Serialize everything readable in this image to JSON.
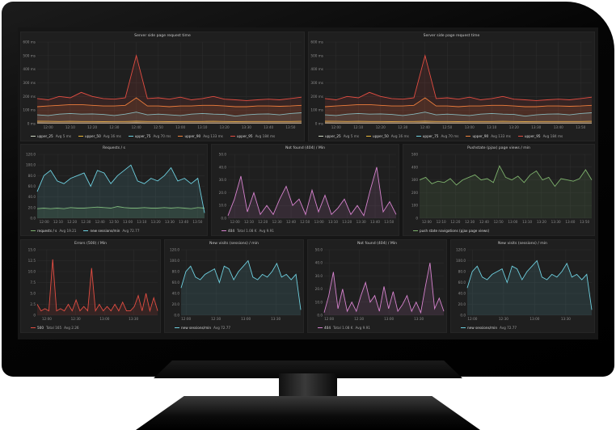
{
  "theme": {
    "panel_bg": "#1f1f1f",
    "grid": "#2e2e2e"
  },
  "panels": [
    {
      "id": "p1",
      "title": "Server side page request time",
      "chart_data": {
        "type": "line",
        "title": "Server side page request time",
        "time_range": [
          "11:55",
          "13:55"
        ],
        "y_ticks": [
          0,
          100,
          200,
          300,
          400,
          500,
          600
        ],
        "y_tick_labels": [
          "0 ms",
          "100 ms",
          "200 ms",
          "300 ms",
          "400 ms",
          "500 ms",
          "600 ms"
        ],
        "ylim": [
          0,
          600
        ],
        "x_tick_labels": [
          "12:00",
          "12:10",
          "12:20",
          "12:30",
          "12:40",
          "12:50",
          "13:00",
          "13:10",
          "13:20",
          "13:30",
          "13:40",
          "13:50"
        ],
        "grid": true,
        "legend": "bottom",
        "series": [
          {
            "name": "upper_25",
            "color": "#cfd8c4",
            "stats": [
              "Avg 5 ms"
            ],
            "values": [
              6,
              5,
              5,
              5,
              5,
              5,
              5,
              5,
              5,
              6,
              5,
              5,
              5,
              5,
              5,
              5,
              5,
              5,
              5,
              5,
              5,
              5,
              5,
              5,
              5
            ]
          },
          {
            "name": "upper_50",
            "color": "#EAB839",
            "stats": [
              "Avg 16 ms"
            ],
            "values": [
              18,
              17,
              16,
              17,
              16,
              16,
              15,
              16,
              16,
              18,
              16,
              16,
              15,
              16,
              16,
              16,
              17,
              16,
              15,
              16,
              16,
              16,
              16,
              16,
              17
            ]
          },
          {
            "name": "upper_75",
            "color": "#6ED0E0",
            "stats": [
              "Avg 70 ms"
            ],
            "values": [
              65,
              60,
              70,
              75,
              70,
              72,
              68,
              60,
              70,
              85,
              65,
              70,
              65,
              60,
              70,
              75,
              70,
              68,
              55,
              65,
              70,
              72,
              65,
              75,
              80
            ]
          },
          {
            "name": "upper_90",
            "color": "#EF843C",
            "stats": [
              "Avg 133 ms"
            ],
            "values": [
              125,
              130,
              135,
              140,
              140,
              135,
              130,
              130,
              135,
              190,
              130,
              130,
              125,
              130,
              130,
              135,
              135,
              130,
              125,
              125,
              130,
              130,
              128,
              130,
              135
            ]
          },
          {
            "name": "upper_95",
            "color": "#E24D42",
            "stats": [
              "Avg 184 ms"
            ],
            "values": [
              185,
              175,
              200,
              190,
              230,
              200,
              185,
              180,
              190,
              500,
              185,
              190,
              180,
              195,
              175,
              185,
              200,
              180,
              175,
              170,
              175,
              180,
              175,
              185,
              195
            ]
          }
        ]
      }
    },
    {
      "id": "p2",
      "title": "Server side page request time",
      "chart_data": {
        "type": "line",
        "title": "Server side page request time",
        "time_range": [
          "11:55",
          "13:55"
        ],
        "y_ticks": [
          0,
          100,
          200,
          300,
          400,
          500,
          600
        ],
        "y_tick_labels": [
          "0 ms",
          "100 ms",
          "200 ms",
          "300 ms",
          "400 ms",
          "500 ms",
          "600 ms"
        ],
        "ylim": [
          0,
          600
        ],
        "x_tick_labels": [
          "12:00",
          "12:10",
          "12:20",
          "12:30",
          "12:40",
          "12:50",
          "13:00",
          "13:10",
          "13:20",
          "13:30",
          "13:40",
          "13:50"
        ],
        "grid": true,
        "legend": "bottom",
        "series": [
          {
            "name": "upper_25",
            "color": "#cfd8c4",
            "stats": [
              "Avg 5 ms"
            ],
            "values": [
              6,
              5,
              5,
              5,
              5,
              5,
              5,
              5,
              5,
              6,
              5,
              5,
              5,
              5,
              5,
              5,
              5,
              5,
              5,
              5,
              5,
              5,
              5,
              5,
              5
            ]
          },
          {
            "name": "upper_50",
            "color": "#EAB839",
            "stats": [
              "Avg 16 ms"
            ],
            "values": [
              18,
              17,
              16,
              17,
              16,
              16,
              15,
              16,
              16,
              18,
              16,
              16,
              15,
              16,
              16,
              16,
              17,
              16,
              15,
              16,
              16,
              16,
              16,
              16,
              17
            ]
          },
          {
            "name": "upper_75",
            "color": "#6ED0E0",
            "stats": [
              "Avg 70 ms"
            ],
            "values": [
              65,
              60,
              70,
              75,
              70,
              72,
              68,
              60,
              70,
              85,
              65,
              70,
              65,
              60,
              70,
              75,
              70,
              68,
              55,
              65,
              70,
              72,
              65,
              75,
              80
            ]
          },
          {
            "name": "upper_90",
            "color": "#EF843C",
            "stats": [
              "Avg 133 ms"
            ],
            "values": [
              125,
              130,
              135,
              140,
              140,
              135,
              130,
              130,
              135,
              190,
              130,
              130,
              125,
              130,
              130,
              135,
              135,
              130,
              125,
              125,
              130,
              130,
              128,
              130,
              135
            ]
          },
          {
            "name": "upper_95",
            "color": "#E24D42",
            "stats": [
              "Avg 184 ms"
            ],
            "values": [
              185,
              175,
              200,
              190,
              230,
              200,
              185,
              180,
              190,
              500,
              185,
              190,
              180,
              195,
              175,
              185,
              200,
              180,
              175,
              170,
              175,
              180,
              175,
              185,
              195
            ]
          }
        ]
      }
    },
    {
      "id": "p3",
      "title": "Requests / s",
      "chart_data": {
        "type": "line",
        "title": "Requests / s",
        "time_range": [
          "11:55",
          "13:55"
        ],
        "y_ticks": [
          0,
          20,
          40,
          60,
          80,
          100,
          120
        ],
        "y_tick_labels": [
          "0.0",
          "20.0",
          "40.0",
          "60.0",
          "80.0",
          "100.0",
          "120.0"
        ],
        "ylim": [
          0,
          120
        ],
        "x_tick_labels": [
          "12:00",
          "12:10",
          "12:20",
          "12:30",
          "12:40",
          "12:50",
          "13:00",
          "13:10",
          "13:20",
          "13:30",
          "13:40",
          "13:50"
        ],
        "grid": true,
        "legend": "bottom",
        "series": [
          {
            "name": "requests / s",
            "color": "#7EB26D",
            "stats": [
              "Avg 19.21"
            ],
            "values": [
              18,
              19,
              18,
              19,
              18,
              20,
              19,
              19,
              20,
              21,
              20,
              19,
              22,
              20,
              19,
              19,
              20,
              19,
              19,
              20,
              19,
              20,
              19,
              18,
              20,
              19
            ]
          },
          {
            "name": "new sessions/min",
            "color": "#6ED0E0",
            "stats": [
              "Avg 72.77"
            ],
            "values": [
              50,
              80,
              90,
              70,
              65,
              75,
              80,
              85,
              60,
              90,
              85,
              65,
              80,
              90,
              100,
              70,
              65,
              75,
              70,
              80,
              95,
              70,
              75,
              65,
              75,
              10
            ]
          }
        ]
      }
    },
    {
      "id": "p4",
      "title": "Not found (404) / Min",
      "chart_data": {
        "type": "line",
        "title": "Not found (404) / Min",
        "time_range": [
          "11:55",
          "13:55"
        ],
        "y_ticks": [
          0,
          10,
          20,
          30,
          40,
          50
        ],
        "y_tick_labels": [
          "0.0",
          "10.0",
          "20.0",
          "30.0",
          "40.0",
          "50.0"
        ],
        "ylim": [
          0,
          50
        ],
        "x_tick_labels": [
          "12:00",
          "12:10",
          "12:20",
          "12:30",
          "12:40",
          "12:50",
          "13:00",
          "13:10",
          "13:20",
          "13:30",
          "13:40",
          "13:50"
        ],
        "grid": true,
        "legend": "bottom",
        "series": [
          {
            "name": "404",
            "color": "#D683CE",
            "stats": [
              "Total 1.08 K",
              "Avg 9.91"
            ],
            "values": [
              2,
              15,
              33,
              5,
              20,
              3,
              10,
              3,
              15,
              25,
              10,
              15,
              3,
              22,
              5,
              18,
              3,
              8,
              15,
              3,
              10,
              2,
              22,
              40,
              5,
              13,
              3
            ]
          }
        ]
      }
    },
    {
      "id": "p5",
      "title": "Pushstate (pjax) page views / min",
      "chart_data": {
        "type": "line",
        "title": "Pushstate (pjax) page views / min",
        "time_range": [
          "11:55",
          "13:55"
        ],
        "y_ticks": [
          0,
          100,
          200,
          300,
          400,
          500
        ],
        "y_tick_labels": [
          "0",
          "100",
          "200",
          "300",
          "400",
          "500"
        ],
        "ylim": [
          0,
          500
        ],
        "x_tick_labels": [
          "12:00",
          "12:10",
          "12:20",
          "12:30",
          "12:40",
          "12:50",
          "13:00",
          "13:10",
          "13:20",
          "13:30",
          "13:40",
          "13:50"
        ],
        "grid": true,
        "legend": "bottom",
        "series": [
          {
            "name": "push state navigations (pjax page views)",
            "color": "#7EB26D",
            "stats": [],
            "values": [
              300,
              320,
              270,
              290,
              280,
              310,
              260,
              300,
              320,
              340,
              300,
              310,
              280,
              410,
              320,
              300,
              330,
              280,
              340,
              370,
              300,
              320,
              250,
              310,
              300,
              290,
              310,
              380,
              300
            ]
          }
        ]
      }
    },
    {
      "id": "p6",
      "title": "Errors (500) / Min",
      "chart_data": {
        "type": "line",
        "title": "Errors (500) / Min",
        "time_range": [
          "11:50",
          "13:55"
        ],
        "y_ticks": [
          0,
          2.5,
          5,
          7.5,
          10,
          12.5,
          15
        ],
        "y_tick_labels": [
          "0",
          "2.5",
          "5.0",
          "7.5",
          "10.0",
          "12.5",
          "15.0"
        ],
        "ylim": [
          0,
          15
        ],
        "x_tick_labels": [
          "12:00",
          "12:30",
          "13:00",
          "13:30"
        ],
        "grid": true,
        "legend": "bottom",
        "series": [
          {
            "name": "500",
            "color": "#E24D42",
            "stats": [
              "Total 165",
              "Avg 2.26"
            ],
            "values": [
              2.5,
              1,
              1.5,
              1,
              12.8,
              1,
              1.5,
              1,
              2.5,
              1,
              3.5,
              1,
              2,
              1,
              10.8,
              1,
              2.5,
              1,
              2,
              1,
              2.5,
              1,
              3,
              1,
              1,
              2,
              4.5,
              1,
              5,
              1,
              4,
              1
            ]
          }
        ]
      }
    },
    {
      "id": "p7",
      "title": "New visits (sessions) / min",
      "chart_data": {
        "type": "line",
        "title": "New visits (sessions) / min",
        "time_range": [
          "11:55",
          "13:55"
        ],
        "y_ticks": [
          0,
          20,
          40,
          60,
          80,
          100,
          120
        ],
        "y_tick_labels": [
          "0.0",
          "20.0",
          "40.0",
          "60.0",
          "80.0",
          "100.0",
          "120.0"
        ],
        "ylim": [
          0,
          120
        ],
        "x_tick_labels": [
          "12:00",
          "12:30",
          "13:00",
          "13:30"
        ],
        "grid": true,
        "legend": "bottom",
        "series": [
          {
            "name": "new sessions/min",
            "color": "#6ED0E0",
            "stats": [
              "Avg 72.77"
            ],
            "values": [
              50,
              80,
              90,
              70,
              65,
              75,
              80,
              85,
              60,
              90,
              85,
              65,
              80,
              90,
              100,
              70,
              65,
              75,
              70,
              80,
              95,
              70,
              75,
              65,
              75,
              10
            ]
          }
        ]
      }
    },
    {
      "id": "p8",
      "title": "Not found (404) / Min",
      "chart_data": {
        "type": "line",
        "title": "Not found (404) / Min",
        "time_range": [
          "11:55",
          "13:55"
        ],
        "y_ticks": [
          0,
          10,
          20,
          30,
          40,
          50
        ],
        "y_tick_labels": [
          "0.0",
          "10.0",
          "20.0",
          "30.0",
          "40.0",
          "50.0"
        ],
        "ylim": [
          0,
          50
        ],
        "x_tick_labels": [
          "12:00",
          "12:30",
          "13:00",
          "13:30"
        ],
        "grid": true,
        "legend": "bottom",
        "series": [
          {
            "name": "404",
            "color": "#D683CE",
            "stats": [
              "Total 1.08 K",
              "Avg 9.91"
            ],
            "values": [
              2,
              15,
              33,
              5,
              20,
              3,
              10,
              3,
              15,
              25,
              10,
              15,
              3,
              22,
              5,
              18,
              3,
              8,
              15,
              3,
              10,
              2,
              22,
              40,
              5,
              13,
              3
            ]
          }
        ]
      }
    },
    {
      "id": "p9",
      "title": "New visits (sessions) / min",
      "chart_data": {
        "type": "line",
        "title": "New visits (sessions) / min",
        "time_range": [
          "11:55",
          "13:55"
        ],
        "y_ticks": [
          0,
          20,
          40,
          60,
          80,
          100,
          120
        ],
        "y_tick_labels": [
          "0.0",
          "20.0",
          "40.0",
          "60.0",
          "80.0",
          "100.0",
          "120.0"
        ],
        "ylim": [
          0,
          120
        ],
        "x_tick_labels": [
          "12:00",
          "12:30",
          "13:00",
          "13:30"
        ],
        "grid": true,
        "legend": "bottom",
        "series": [
          {
            "name": "new sessions/min",
            "color": "#6ED0E0",
            "stats": [
              "Avg 72.77"
            ],
            "values": [
              50,
              80,
              90,
              70,
              65,
              75,
              80,
              85,
              60,
              90,
              85,
              65,
              80,
              90,
              100,
              70,
              65,
              75,
              70,
              80,
              95,
              70,
              75,
              65,
              75,
              10
            ]
          }
        ]
      }
    }
  ]
}
